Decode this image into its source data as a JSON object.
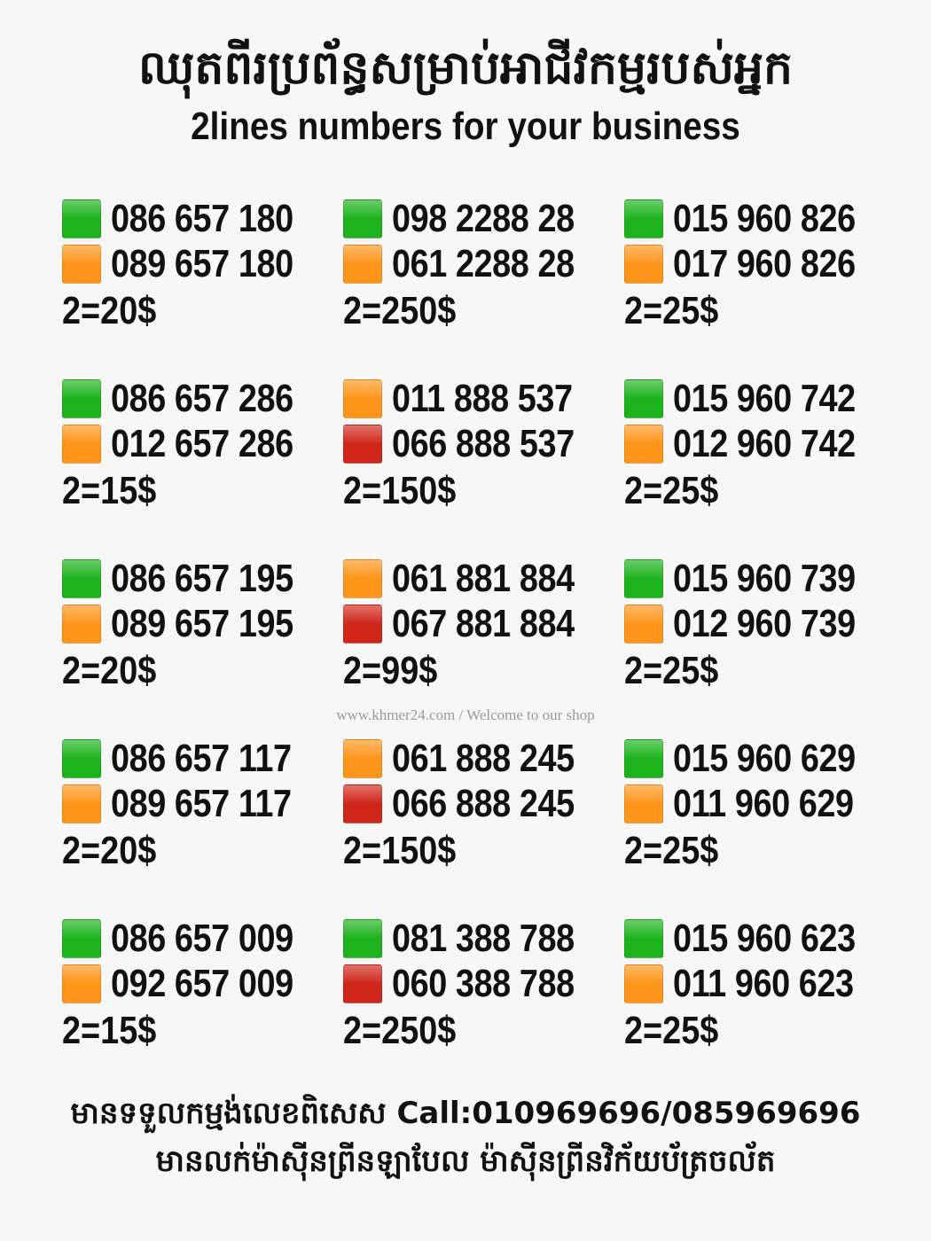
{
  "header": {
    "title_khmer": "ឈុតពីរប្រព័ន្ធសម្រាប់អាជីវកម្មរបស់អ្នក",
    "title_english": "2lines numbers for your business"
  },
  "colors": {
    "green": "#1db31d",
    "orange": "#ff951a",
    "red": "#d0261a"
  },
  "columns": [
    [
      {
        "lines": [
          {
            "color": "green",
            "number": "086 657 180"
          },
          {
            "color": "orange",
            "number": "089 657 180"
          }
        ],
        "price": "2=20$"
      },
      {
        "lines": [
          {
            "color": "green",
            "number": "086 657 286"
          },
          {
            "color": "orange",
            "number": "012 657 286"
          }
        ],
        "price": "2=15$"
      },
      {
        "lines": [
          {
            "color": "green",
            "number": "086 657 195"
          },
          {
            "color": "orange",
            "number": "089 657 195"
          }
        ],
        "price": "2=20$"
      },
      {
        "lines": [
          {
            "color": "green",
            "number": "086 657 117"
          },
          {
            "color": "orange",
            "number": "089 657 117"
          }
        ],
        "price": "2=20$"
      },
      {
        "lines": [
          {
            "color": "green",
            "number": "086 657 009"
          },
          {
            "color": "orange",
            "number": "092 657 009"
          }
        ],
        "price": "2=15$"
      }
    ],
    [
      {
        "lines": [
          {
            "color": "green",
            "number": "098 2288 28"
          },
          {
            "color": "orange",
            "number": "061 2288 28"
          }
        ],
        "price": "2=250$"
      },
      {
        "lines": [
          {
            "color": "orange",
            "number": "011 888 537"
          },
          {
            "color": "red",
            "number": "066 888 537"
          }
        ],
        "price": "2=150$"
      },
      {
        "lines": [
          {
            "color": "orange",
            "number": "061 881 884"
          },
          {
            "color": "red",
            "number": "067 881 884"
          }
        ],
        "price": "2=99$"
      },
      {
        "lines": [
          {
            "color": "orange",
            "number": "061 888 245"
          },
          {
            "color": "red",
            "number": "066 888 245"
          }
        ],
        "price": "2=150$"
      },
      {
        "lines": [
          {
            "color": "green",
            "number": "081 388 788"
          },
          {
            "color": "red",
            "number": "060 388 788"
          }
        ],
        "price": "2=250$"
      }
    ],
    [
      {
        "lines": [
          {
            "color": "green",
            "number": "015 960 826"
          },
          {
            "color": "orange",
            "number": "017 960 826"
          }
        ],
        "price": "2=25$"
      },
      {
        "lines": [
          {
            "color": "green",
            "number": "015 960 742"
          },
          {
            "color": "orange",
            "number": "012 960 742"
          }
        ],
        "price": "2=25$"
      },
      {
        "lines": [
          {
            "color": "green",
            "number": "015 960 739"
          },
          {
            "color": "orange",
            "number": "012 960 739"
          }
        ],
        "price": "2=25$"
      },
      {
        "lines": [
          {
            "color": "green",
            "number": "015 960 629"
          },
          {
            "color": "orange",
            "number": "011 960 629"
          }
        ],
        "price": "2=25$"
      },
      {
        "lines": [
          {
            "color": "green",
            "number": "015 960 623"
          },
          {
            "color": "orange",
            "number": "011 960 623"
          }
        ],
        "price": "2=25$"
      }
    ]
  ],
  "watermark": "www.khmer24.com / Welcome to our shop",
  "footer": {
    "line1": "មានទទួលកម្មង់លេខពិសេស Call:010969696/085969696",
    "line2": "មានលក់ម៉ាស៊ីនព្រីនឡាបែល ម៉ាស៊ីនព្រីនវិក័យប័ត្រចល័ត"
  }
}
